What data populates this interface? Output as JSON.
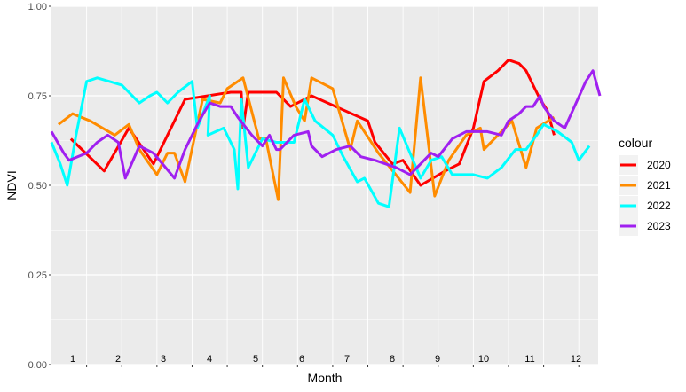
{
  "chart_data": {
    "type": "line",
    "xlabel": "Month",
    "ylabel": "NDVI",
    "ylim": [
      0,
      1
    ],
    "y_ticks": [
      "0.00",
      "0.25",
      "0.50",
      "0.75",
      "1.00"
    ],
    "month_labels": [
      "1",
      "2",
      "3",
      "4",
      "5",
      "6",
      "7",
      "8",
      "9",
      "10",
      "11",
      "12"
    ],
    "grid": true,
    "legend_title": "colour",
    "legend_position": "right",
    "series": [
      {
        "name": "2020",
        "color": "#ff0000",
        "points": [
          [
            0.55,
            0.63
          ],
          [
            1.5,
            0.54
          ],
          [
            2.2,
            0.66
          ],
          [
            2.9,
            0.56
          ],
          [
            3.8,
            0.74
          ],
          [
            5.1,
            0.76
          ],
          [
            5.4,
            0.76
          ],
          [
            5.45,
            0.66
          ],
          [
            5.6,
            0.76
          ],
          [
            6.4,
            0.76
          ],
          [
            6.8,
            0.72
          ],
          [
            7.4,
            0.75
          ],
          [
            9.0,
            0.68
          ],
          [
            9.2,
            0.62
          ],
          [
            9.7,
            0.56
          ],
          [
            10.0,
            0.57
          ],
          [
            10.5,
            0.5
          ],
          [
            11.2,
            0.54
          ],
          [
            11.6,
            0.56
          ],
          [
            12.0,
            0.66
          ],
          [
            12.3,
            0.79
          ],
          [
            12.7,
            0.82
          ],
          [
            13.0,
            0.85
          ],
          [
            13.3,
            0.84
          ],
          [
            13.5,
            0.82
          ],
          [
            13.7,
            0.78
          ],
          [
            13.9,
            0.74
          ],
          [
            14.1,
            0.71
          ],
          [
            14.3,
            0.64
          ]
        ]
      },
      {
        "name": "2021",
        "color": "#ff8c00",
        "points": [
          [
            0.2,
            0.67
          ],
          [
            0.6,
            0.7
          ],
          [
            1.1,
            0.68
          ],
          [
            1.8,
            0.64
          ],
          [
            2.2,
            0.67
          ],
          [
            2.5,
            0.6
          ],
          [
            3.0,
            0.53
          ],
          [
            3.3,
            0.59
          ],
          [
            3.5,
            0.59
          ],
          [
            3.8,
            0.51
          ],
          [
            4.3,
            0.74
          ],
          [
            4.8,
            0.73
          ],
          [
            5.0,
            0.77
          ],
          [
            5.45,
            0.8
          ],
          [
            5.9,
            0.63
          ],
          [
            6.1,
            0.63
          ],
          [
            6.45,
            0.46
          ],
          [
            6.6,
            0.8
          ],
          [
            6.95,
            0.72
          ],
          [
            7.2,
            0.68
          ],
          [
            7.4,
            0.8
          ],
          [
            8.0,
            0.77
          ],
          [
            8.5,
            0.6
          ],
          [
            8.7,
            0.68
          ],
          [
            9.3,
            0.59
          ],
          [
            10.2,
            0.48
          ],
          [
            10.5,
            0.8
          ],
          [
            10.9,
            0.47
          ],
          [
            11.3,
            0.57
          ],
          [
            11.8,
            0.64
          ],
          [
            12.2,
            0.66
          ],
          [
            12.3,
            0.6
          ],
          [
            12.7,
            0.64
          ],
          [
            13.1,
            0.68
          ],
          [
            13.5,
            0.55
          ],
          [
            13.8,
            0.66
          ],
          [
            14.3,
            0.69
          ]
        ]
      },
      {
        "name": "2022",
        "color": "#00ffff",
        "points": [
          [
            0.0,
            0.62
          ],
          [
            0.25,
            0.56
          ],
          [
            0.45,
            0.5
          ],
          [
            0.7,
            0.64
          ],
          [
            1.0,
            0.79
          ],
          [
            1.3,
            0.8
          ],
          [
            2.0,
            0.78
          ],
          [
            2.5,
            0.73
          ],
          [
            2.8,
            0.75
          ],
          [
            3.0,
            0.76
          ],
          [
            3.3,
            0.73
          ],
          [
            3.6,
            0.76
          ],
          [
            4.0,
            0.79
          ],
          [
            4.15,
            0.66
          ],
          [
            4.5,
            0.75
          ],
          [
            4.45,
            0.64
          ],
          [
            4.9,
            0.66
          ],
          [
            5.2,
            0.6
          ],
          [
            5.3,
            0.49
          ],
          [
            5.4,
            0.74
          ],
          [
            5.6,
            0.55
          ],
          [
            6.0,
            0.63
          ],
          [
            6.4,
            0.62
          ],
          [
            6.9,
            0.62
          ],
          [
            7.2,
            0.74
          ],
          [
            7.5,
            0.68
          ],
          [
            8.0,
            0.64
          ],
          [
            8.3,
            0.58
          ],
          [
            8.7,
            0.51
          ],
          [
            8.9,
            0.52
          ],
          [
            9.3,
            0.45
          ],
          [
            9.6,
            0.44
          ],
          [
            9.9,
            0.66
          ],
          [
            10.5,
            0.52
          ],
          [
            10.8,
            0.57
          ],
          [
            11.1,
            0.58
          ],
          [
            11.4,
            0.53
          ],
          [
            12.0,
            0.53
          ],
          [
            12.4,
            0.52
          ],
          [
            12.8,
            0.55
          ],
          [
            13.2,
            0.6
          ],
          [
            13.5,
            0.6
          ],
          [
            13.8,
            0.64
          ],
          [
            14.0,
            0.67
          ],
          [
            14.4,
            0.65
          ],
          [
            14.8,
            0.62
          ],
          [
            15.0,
            0.57
          ],
          [
            15.3,
            0.61
          ]
        ]
      },
      {
        "name": "2023",
        "color": "#a020f0",
        "points": [
          [
            0.0,
            0.65
          ],
          [
            0.35,
            0.59
          ],
          [
            0.5,
            0.57
          ],
          [
            1.0,
            0.59
          ],
          [
            1.3,
            0.62
          ],
          [
            1.6,
            0.64
          ],
          [
            1.9,
            0.62
          ],
          [
            2.1,
            0.52
          ],
          [
            2.5,
            0.61
          ],
          [
            2.9,
            0.59
          ],
          [
            3.5,
            0.52
          ],
          [
            3.8,
            0.6
          ],
          [
            4.2,
            0.68
          ],
          [
            4.5,
            0.73
          ],
          [
            4.8,
            0.72
          ],
          [
            5.1,
            0.72
          ],
          [
            5.3,
            0.69
          ],
          [
            5.7,
            0.64
          ],
          [
            6.0,
            0.61
          ],
          [
            6.2,
            0.64
          ],
          [
            6.4,
            0.6
          ],
          [
            6.5,
            0.6
          ],
          [
            6.9,
            0.64
          ],
          [
            7.3,
            0.65
          ],
          [
            7.4,
            0.61
          ],
          [
            7.7,
            0.58
          ],
          [
            8.1,
            0.6
          ],
          [
            8.5,
            0.61
          ],
          [
            8.8,
            0.58
          ],
          [
            9.2,
            0.57
          ],
          [
            9.8,
            0.55
          ],
          [
            10.2,
            0.53
          ],
          [
            10.8,
            0.59
          ],
          [
            11.0,
            0.58
          ],
          [
            11.4,
            0.63
          ],
          [
            11.8,
            0.65
          ],
          [
            12.1,
            0.65
          ],
          [
            12.4,
            0.65
          ],
          [
            12.8,
            0.64
          ],
          [
            13.0,
            0.68
          ],
          [
            13.3,
            0.7
          ],
          [
            13.5,
            0.72
          ],
          [
            13.7,
            0.72
          ],
          [
            13.9,
            0.75
          ],
          [
            14.0,
            0.72
          ],
          [
            14.3,
            0.68
          ],
          [
            14.6,
            0.66
          ],
          [
            15.2,
            0.79
          ],
          [
            15.4,
            0.82
          ],
          [
            15.6,
            0.75
          ]
        ]
      }
    ]
  }
}
